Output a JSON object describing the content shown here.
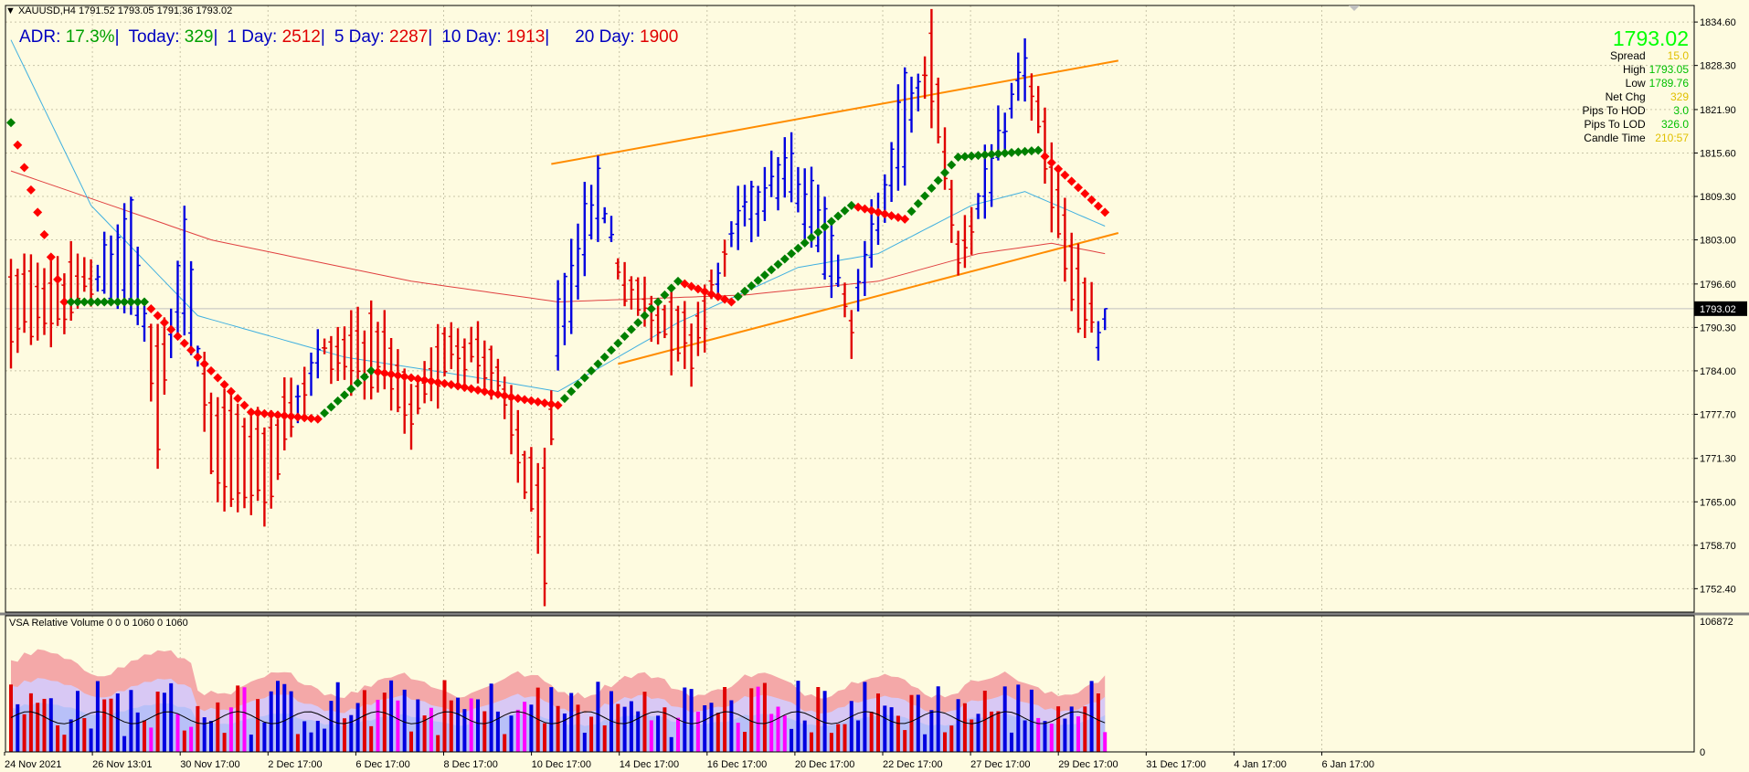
{
  "chart_title": "XAUUSD,H4  1791.52 1793.05 1791.36 1793.02",
  "adr_bar": [
    {
      "label": "ADR:",
      "value": "17.3%",
      "value_color": "#00a000",
      "sep": "|"
    },
    {
      "label": "Today:",
      "value": "329",
      "value_color": "#00a000",
      "sep": "|"
    },
    {
      "label": "1 Day:",
      "value": "2512",
      "value_color": "#e00000",
      "sep": "|"
    },
    {
      "label": "5 Day:",
      "value": "2287",
      "value_color": "#e00000",
      "sep": "|"
    },
    {
      "label": "10 Day:",
      "value": "1913",
      "value_color": "#e00000",
      "sep": "|"
    },
    {
      "label": "20 Day:",
      "value": "1900",
      "value_color": "#e00000",
      "sep": ""
    }
  ],
  "info_panel": {
    "price": "1793.02",
    "rows": [
      {
        "label": "Spread",
        "value": "15.0",
        "color": "#e0c000"
      },
      {
        "label": "High",
        "value": "1793.05",
        "color": "#00c000"
      },
      {
        "label": "Low",
        "value": "1789.76",
        "color": "#00c000"
      },
      {
        "label": "Net Chg",
        "value": "329",
        "color": "#e0c000"
      },
      {
        "label": "Pips To HOD",
        "value": "3.0",
        "color": "#00c000"
      },
      {
        "label": "Pips To LOD",
        "value": "326.0",
        "color": "#00c000"
      },
      {
        "label": "Candle Time",
        "value": "210:57",
        "color": "#e0c000"
      }
    ]
  },
  "indicator_title": "VSA Relative Volume 0 0 0 1060 0 1060",
  "colors": {
    "background": "#fefbe0",
    "grid": "#c8c4a8",
    "up_bar": "#0000e0",
    "down_bar": "#e00000",
    "channel": "#ff8c00",
    "ma_slow": "#e04040",
    "ma_fast": "#40b0e0",
    "dot_up": "#008000",
    "dot_down": "#ff0000",
    "climax": "#ff00ff"
  },
  "chart_data": [
    {
      "type": "ohlc",
      "symbol": "XAUUSD",
      "timeframe": "H4",
      "current_price": 1793.02,
      "ylim": [
        1749.0,
        1837.0
      ],
      "y_ticks": [
        "1834.60",
        "1828.30",
        "1821.90",
        "1815.60",
        "1809.30",
        "1803.00",
        "1796.60",
        "1790.30",
        "1784.00",
        "1777.70",
        "1771.30",
        "1765.00",
        "1758.70",
        "1752.40"
      ],
      "x_ticks": [
        "24 Nov 2021",
        "26 Nov 13:01",
        "30 Nov 17:00",
        "2 Dec 17:00",
        "6 Dec 17:00",
        "8 Dec 17:00",
        "10 Dec 17:00",
        "14 Dec 17:00",
        "16 Dec 17:00",
        "20 Dec 17:00",
        "22 Dec 17:00",
        "27 Dec 17:00",
        "29 Dec 17:00",
        "31 Dec 17:00",
        "4 Jan 17:00",
        "6 Jan 17:00"
      ],
      "anchors": [
        [
          0,
          1797.0,
          1789.0
        ],
        [
          10,
          1798.0,
          1793.0
        ],
        [
          18,
          1794.0,
          1808.0
        ],
        [
          22,
          1787.0,
          1773.0
        ],
        [
          26,
          1794.0,
          1807.0
        ],
        [
          30,
          1779.0,
          1768.0
        ],
        [
          38,
          1775.0,
          1765.0
        ],
        [
          46,
          1786.0,
          1787.0
        ],
        [
          55,
          1791.0,
          1783.0
        ],
        [
          60,
          1780.0,
          1775.0
        ],
        [
          66,
          1790.0,
          1787.0
        ],
        [
          72,
          1786.0,
          1784.0
        ],
        [
          78,
          1770.0,
          1764.0
        ],
        [
          80,
          1768.0,
          1752.0
        ],
        [
          82,
          1785.0,
          1795.0
        ],
        [
          88,
          1808.0,
          1812.0
        ],
        [
          92,
          1798.0,
          1795.0
        ],
        [
          102,
          1790.0,
          1786.0
        ],
        [
          110,
          1806.0,
          1810.0
        ],
        [
          116,
          1811.0,
          1815.0
        ],
        [
          122,
          1800.0,
          1808.0
        ],
        [
          126,
          1793.0,
          1791.0
        ],
        [
          134,
          1815.0,
          1826.0
        ],
        [
          138,
          1832.0,
          1825.0
        ],
        [
          142,
          1802.0,
          1800.0
        ],
        [
          148,
          1813.0,
          1817.0
        ],
        [
          152,
          1828.0,
          1830.0
        ],
        [
          156,
          1815.0,
          1807.0
        ],
        [
          160,
          1800.0,
          1790.0
        ],
        [
          163,
          1788.0,
          1790.0
        ],
        [
          164,
          1791.52,
          1793.02
        ]
      ],
      "ma_slow_anchors": [
        [
          0,
          1813.0
        ],
        [
          30,
          1803.0
        ],
        [
          60,
          1797.0
        ],
        [
          82,
          1794.0
        ],
        [
          110,
          1795.0
        ],
        [
          130,
          1797.0
        ],
        [
          145,
          1801.0
        ],
        [
          156,
          1802.5
        ],
        [
          164,
          1801.0
        ]
      ],
      "ma_fast_anchors": [
        [
          0,
          1832.0
        ],
        [
          12,
          1808.0
        ],
        [
          28,
          1792.0
        ],
        [
          50,
          1786.0
        ],
        [
          70,
          1783.0
        ],
        [
          82,
          1781.0
        ],
        [
          100,
          1791.0
        ],
        [
          118,
          1799.0
        ],
        [
          130,
          1801.0
        ],
        [
          144,
          1808.0
        ],
        [
          152,
          1810.0
        ],
        [
          164,
          1805.0
        ]
      ],
      "dot_anchors": [
        [
          0,
          1820.0
        ],
        [
          8,
          1794.0
        ],
        [
          20,
          1794.0
        ],
        [
          36,
          1778.0
        ],
        [
          46,
          1777.0
        ],
        [
          54,
          1784.0
        ],
        [
          66,
          1782.0
        ],
        [
          76,
          1780.0
        ],
        [
          82,
          1779.0
        ],
        [
          100,
          1797.0
        ],
        [
          108,
          1794.0
        ],
        [
          126,
          1808.0
        ],
        [
          134,
          1806.0
        ],
        [
          142,
          1815.0
        ],
        [
          154,
          1816.0
        ],
        [
          164,
          1807.0
        ]
      ],
      "channel_upper": [
        [
          1798.0,
          1814.0
        ],
        [
          1803.0,
          1829.0
        ]
      ],
      "channel_lower": [
        [
          1778.0,
          1785.0
        ],
        [
          1803.0,
          1804.0
        ]
      ],
      "grid": true
    },
    {
      "type": "bar",
      "name": "VSA Relative Volume",
      "ylim": [
        0,
        106872
      ],
      "y_ticks": [
        "106872",
        "0"
      ]
    }
  ]
}
